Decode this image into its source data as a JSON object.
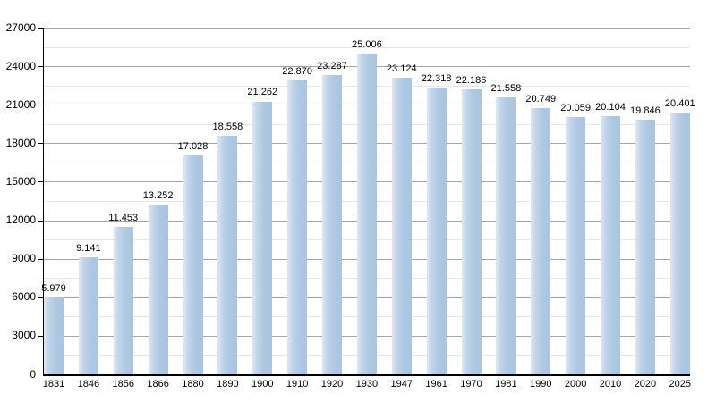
{
  "chart_data": {
    "type": "bar",
    "title": "",
    "xlabel": "",
    "ylabel": "",
    "categories": [
      "1831",
      "1846",
      "1856",
      "1866",
      "1880",
      "1890",
      "1900",
      "1910",
      "1920",
      "1930",
      "1947",
      "1961",
      "1970",
      "1981",
      "1990",
      "2000",
      "2010",
      "2020",
      "2025"
    ],
    "values": [
      5979,
      9141,
      11453,
      13252,
      17028,
      18558,
      21262,
      22870,
      23287,
      25006,
      23124,
      22318,
      22186,
      21558,
      20749,
      20059,
      20104,
      19846,
      20401
    ],
    "value_labels": [
      "5.979",
      "9.141",
      "11.453",
      "13.252",
      "17.028",
      "18.558",
      "21.262",
      "22.870",
      "23.287",
      "25.006",
      "23.124",
      "22.318",
      "22.186",
      "21.558",
      "20.749",
      "20.059",
      "20.104",
      "19.846",
      "20.401"
    ],
    "ylim": [
      0,
      27000
    ],
    "y_major_step": 3000,
    "y_minor_step": 1500,
    "y_tick_values": [
      0,
      3000,
      6000,
      9000,
      12000,
      15000,
      18000,
      21000,
      24000,
      27000
    ],
    "y_tick_labels": [
      "0",
      "3000",
      "6000",
      "9000",
      "12000",
      "15000",
      "18000",
      "21000",
      "24000",
      "27000"
    ],
    "grid": true,
    "legend": false,
    "bar_color": "#aec8e2",
    "bar_highlight_color": "#dde8f4",
    "major_grid_color": "#a6a6a6",
    "minor_grid_color": "#e6e6e6",
    "axis_color": "#000000"
  }
}
